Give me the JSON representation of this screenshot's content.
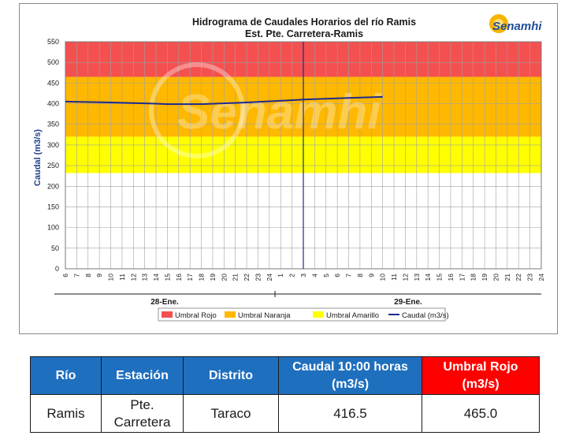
{
  "chart_data": {
    "type": "line",
    "title": "Hidrograma de Caudales Horarios del río Ramis",
    "subtitle": "Est. Pte. Carretera-Ramis",
    "ylabel": "Caudal  (m3/s)",
    "ylim": [
      0,
      550
    ],
    "yticks": [
      0,
      50,
      100,
      150,
      200,
      250,
      300,
      350,
      400,
      450,
      500,
      550
    ],
    "xtick_labels": [
      "6",
      "7",
      "8",
      "9",
      "10",
      "11",
      "12",
      "13",
      "14",
      "15",
      "16",
      "17",
      "18",
      "19",
      "20",
      "21",
      "22",
      "23",
      "24",
      "1",
      "2",
      "3",
      "4",
      "5",
      "6",
      "7",
      "8",
      "9",
      "10",
      "11",
      "12",
      "13",
      "14",
      "15",
      "16",
      "17",
      "18",
      "19",
      "20",
      "21",
      "22",
      "23",
      "24"
    ],
    "day_labels": [
      "28-Ene.",
      "29-Ene."
    ],
    "current_time_tick_index": 21,
    "thresholds": [
      {
        "name": "Umbral Rojo",
        "from": 465,
        "to": 550,
        "color": "#f4504f"
      },
      {
        "name": "Umbral Naranja",
        "from": 320,
        "to": 465,
        "color": "#ffb800"
      },
      {
        "name": "Umbral Amarillo",
        "from": 232,
        "to": 320,
        "color": "#ffff00"
      }
    ],
    "series": [
      {
        "name": "Caudal (m3/s)",
        "color": "#1f2a8a",
        "x_tick_index": [
          0,
          4,
          8,
          9,
          12,
          16,
          21,
          25,
          28
        ],
        "values": [
          405,
          403,
          400,
          399,
          399,
          403,
          410,
          414,
          416.5
        ]
      }
    ],
    "legend": [
      "Umbral Rojo",
      "Umbral Naranja",
      "Umbral Amarillo",
      "Caudal (m3/s)"
    ],
    "legend_position": "bottom",
    "watermark": "Senamhi"
  },
  "logo_text": "Senamhi",
  "table": {
    "headers": [
      "Río",
      "Estación",
      "Distrito",
      "Caudal 10:00 horas (m3/s)",
      "Umbral Rojo (m3/s)"
    ],
    "rows": [
      [
        "Ramis",
        "Pte. Carretera",
        "Taraco",
        "416.5",
        "465.0"
      ]
    ]
  },
  "colors": {
    "header_blue": "#1f6fbf",
    "header_red": "#ff0000"
  }
}
